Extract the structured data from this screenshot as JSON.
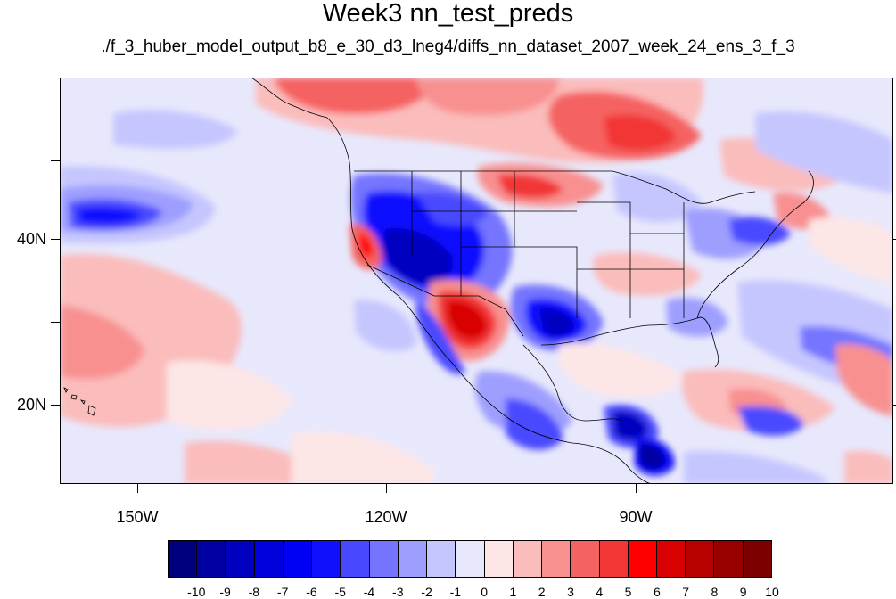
{
  "title": "Week3 nn_test_preds",
  "subtitle": "./f_3_huber_model_output_b8_e_30_d3_lneg4/diffs_nn_dataset_2007_week_24_ens_3_f_3",
  "lat_labels": [
    "40N",
    "20N"
  ],
  "lon_labels": [
    "150W",
    "120W",
    "90W"
  ],
  "map": {
    "lon_range": [
      -160,
      -60
    ],
    "lat_range": [
      10,
      59
    ],
    "projection": "cylindrical equidistant"
  },
  "colorbar": {
    "labels": [
      "-10",
      "-9",
      "-8",
      "-7",
      "-6",
      "-5",
      "-4",
      "-3",
      "-2",
      "-1",
      "0",
      "1",
      "2",
      "3",
      "4",
      "5",
      "6",
      "7",
      "8",
      "9",
      "10"
    ],
    "colors": [
      "#00007f",
      "#0000a3",
      "#0000c0",
      "#0000dc",
      "#0000f5",
      "#1010ff",
      "#4848ff",
      "#7474ff",
      "#9e9eff",
      "#c6c6ff",
      "#e8e8fc",
      "#fde6e6",
      "#fbbcbc",
      "#f89090",
      "#f56262",
      "#f23636",
      "#ff0000",
      "#d80000",
      "#b70000",
      "#980000",
      "#7c0000"
    ]
  }
}
